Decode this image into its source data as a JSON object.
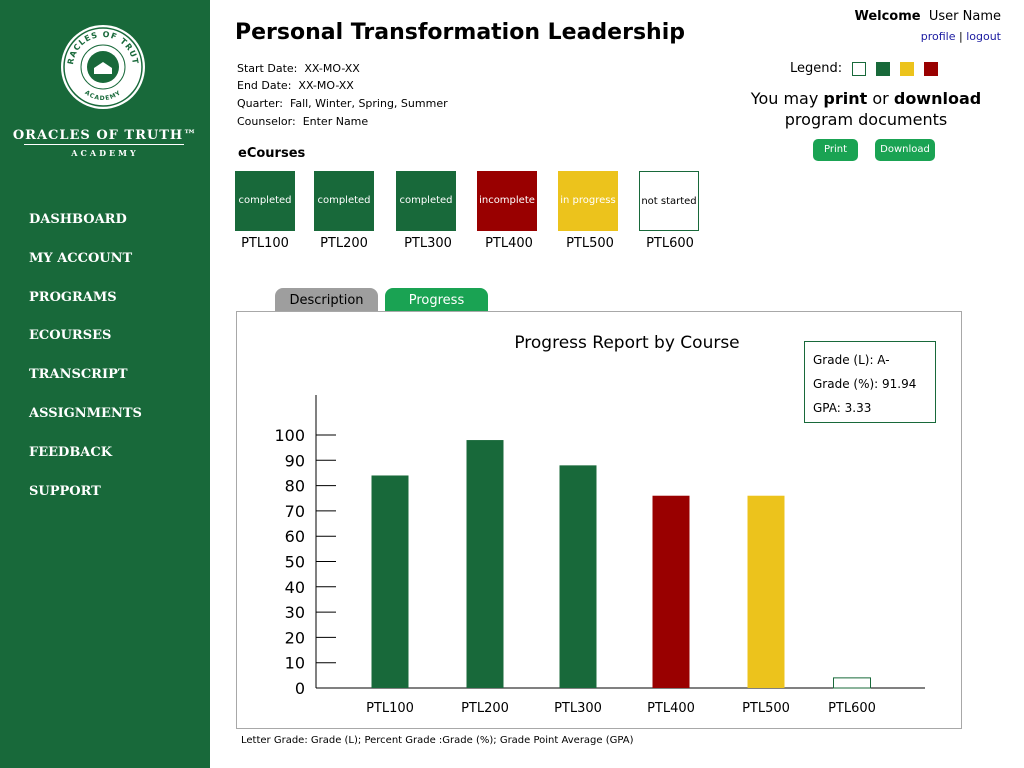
{
  "sidebar": {
    "brand_name": "ORACLES OF TRUTH™",
    "brand_sub": "ACADEMY",
    "logo_ring_top": "ORACLES OF TRUTH",
    "logo_ring_bottom": "ACADEMY",
    "nav": [
      "DASHBOARD",
      "MY ACCOUNT",
      "PROGRAMS",
      "ECOURSES",
      "TRANSCRIPT",
      "ASSIGNMENTS",
      "FEEDBACK",
      "SUPPORT"
    ]
  },
  "header": {
    "title": "Personal Transformation Leadership",
    "welcome_label": "Welcome",
    "user_name": "User Name",
    "profile_link": "profile",
    "separator": "|",
    "logout_link": "logout"
  },
  "program_meta": [
    {
      "label": "Start Date:",
      "value": "XX-MO-XX"
    },
    {
      "label": "End Date:",
      "value": "XX-MO-XX"
    },
    {
      "label": "Quarter:",
      "value": "Fall, Winter, Spring, Summer"
    },
    {
      "label": "Counselor:",
      "value": "Enter Name"
    }
  ],
  "legend": {
    "label": "Legend:",
    "swatches": [
      "not-started",
      "completed",
      "in-progress",
      "incomplete"
    ]
  },
  "documents": {
    "pre": "You may",
    "print_word": "print",
    "mid": "or",
    "download_word": "download",
    "post": "program documents",
    "print_button": "Print",
    "download_button": "Download"
  },
  "ecourses": {
    "title": "eCourses",
    "items": [
      {
        "code": "PTL100",
        "status": "completed"
      },
      {
        "code": "PTL200",
        "status": "completed"
      },
      {
        "code": "PTL300",
        "status": "completed"
      },
      {
        "code": "PTL400",
        "status": "incomplete"
      },
      {
        "code": "PTL500",
        "status": "in progress"
      },
      {
        "code": "PTL600",
        "status": "not started"
      }
    ]
  },
  "tabs": {
    "description": "Description",
    "progress": "Progress"
  },
  "grades": {
    "letter": "Grade (L):  A-",
    "percent": "Grade (%): 91.94",
    "gpa": "GPA: 3.33"
  },
  "footnote": "Letter Grade: Grade (L); Percent Grade :Grade (%); Grade Point Average (GPA)",
  "colors": {
    "green": "#18693a",
    "red": "#990000",
    "yellow": "#ecc31c",
    "button_green": "#1aa353",
    "tab_gray": "#9e9e9e"
  },
  "chart_data": {
    "type": "bar",
    "title": "Progress Report by Course",
    "xlabel": "",
    "ylabel": "",
    "categories": [
      "PTL100",
      "PTL200",
      "PTL300",
      "PTL400",
      "PTL500",
      "PTL600"
    ],
    "values": [
      84,
      98,
      88,
      76,
      76,
      4
    ],
    "bar_colors": [
      "#18693a",
      "#18693a",
      "#18693a",
      "#990000",
      "#ecc31c",
      "outline"
    ],
    "ylim": [
      0,
      100
    ],
    "yticks": [
      0,
      10,
      20,
      30,
      40,
      50,
      60,
      70,
      80,
      90,
      100
    ],
    "grid": false,
    "legend": "none"
  }
}
